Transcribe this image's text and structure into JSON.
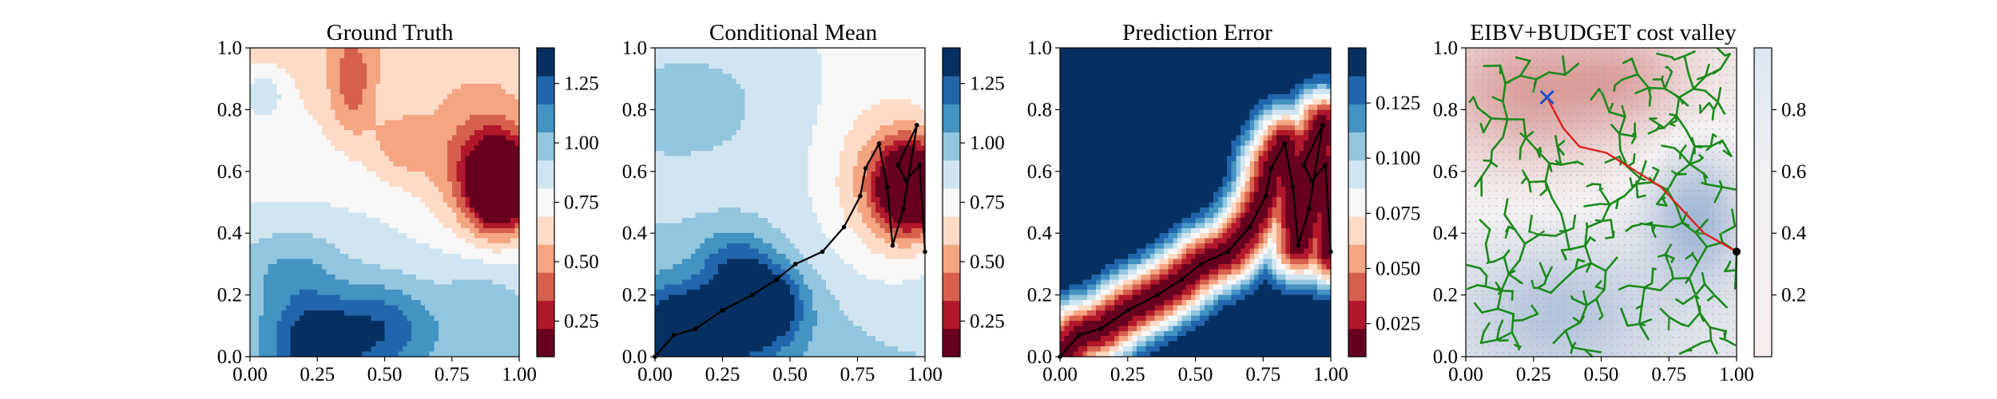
{
  "figure": {
    "panel_titles": [
      "Ground Truth",
      "Conditional Mean",
      "Prediction Error",
      "EIBV+BUDGET cost valley"
    ]
  },
  "colors": {
    "rdbu_levels": [
      "#67001f",
      "#b2182b",
      "#d6604d",
      "#f4a582",
      "#fddbc7",
      "#f7f7f7",
      "#d1e5f0",
      "#92c5de",
      "#4393c3",
      "#2166ac",
      "#053061"
    ],
    "path": "#000000",
    "tree_edges": "#1a8a1a",
    "best_route": "#e0201c",
    "current_marker": "#2050c8",
    "sample_points": "#8898c0"
  },
  "chart_data": [
    {
      "type": "heatmap",
      "title": "Ground Truth",
      "xlim": [
        0,
        1
      ],
      "ylim": [
        0,
        1
      ],
      "xticks": [
        "0.00",
        "0.25",
        "0.50",
        "0.75",
        "1.00"
      ],
      "yticks": [
        "0.0",
        "0.2",
        "0.4",
        "0.6",
        "0.8",
        "1.0"
      ],
      "colorbar": {
        "range": [
          0.1,
          1.4
        ],
        "ticks": [
          "0.25",
          "0.50",
          "0.75",
          "1.00",
          "1.25"
        ]
      },
      "description_of_field": {
        "low_blob": {
          "x": 0.92,
          "y": 0.55,
          "value": 0.1
        },
        "high_region": {
          "x": 0.25,
          "y": 0.05,
          "value": 1.4
        }
      }
    },
    {
      "type": "heatmap",
      "title": "Conditional Mean",
      "xlim": [
        0,
        1
      ],
      "ylim": [
        0,
        1
      ],
      "xticks": [
        "0.00",
        "0.25",
        "0.50",
        "0.75",
        "1.00"
      ],
      "yticks": [
        "0.0",
        "0.2",
        "0.4",
        "0.6",
        "0.8",
        "1.0"
      ],
      "colorbar": {
        "range": [
          0.1,
          1.4
        ],
        "ticks": [
          "0.25",
          "0.50",
          "0.75",
          "1.00",
          "1.25"
        ]
      },
      "path": [
        [
          0.0,
          0.0
        ],
        [
          0.07,
          0.07
        ],
        [
          0.15,
          0.09
        ],
        [
          0.25,
          0.15
        ],
        [
          0.36,
          0.2
        ],
        [
          0.45,
          0.25
        ],
        [
          0.52,
          0.3
        ],
        [
          0.62,
          0.34
        ],
        [
          0.7,
          0.42
        ],
        [
          0.76,
          0.52
        ],
        [
          0.78,
          0.61
        ],
        [
          0.83,
          0.69
        ],
        [
          0.86,
          0.55
        ],
        [
          0.88,
          0.36
        ],
        [
          0.92,
          0.48
        ],
        [
          0.97,
          0.75
        ],
        [
          0.9,
          0.62
        ],
        [
          0.93,
          0.57
        ],
        [
          0.98,
          0.62
        ],
        [
          1.0,
          0.34
        ]
      ]
    },
    {
      "type": "heatmap",
      "title": "Prediction Error",
      "xlim": [
        0,
        1
      ],
      "ylim": [
        0,
        1
      ],
      "xticks": [
        "0.00",
        "0.25",
        "0.50",
        "0.75",
        "1.00"
      ],
      "yticks": [
        "0.0",
        "0.2",
        "0.4",
        "0.6",
        "0.8",
        "1.0"
      ],
      "colorbar": {
        "range": [
          0.01,
          0.15
        ],
        "ticks": [
          "0.025",
          "0.050",
          "0.075",
          "0.100",
          "0.125"
        ]
      },
      "path": [
        [
          0.0,
          0.0
        ],
        [
          0.07,
          0.07
        ],
        [
          0.15,
          0.09
        ],
        [
          0.25,
          0.15
        ],
        [
          0.36,
          0.2
        ],
        [
          0.45,
          0.25
        ],
        [
          0.52,
          0.3
        ],
        [
          0.62,
          0.34
        ],
        [
          0.7,
          0.42
        ],
        [
          0.76,
          0.52
        ],
        [
          0.78,
          0.61
        ],
        [
          0.83,
          0.69
        ],
        [
          0.86,
          0.55
        ],
        [
          0.88,
          0.36
        ],
        [
          0.92,
          0.48
        ],
        [
          0.97,
          0.75
        ],
        [
          0.9,
          0.62
        ],
        [
          0.93,
          0.57
        ],
        [
          0.98,
          0.62
        ],
        [
          1.0,
          0.34
        ]
      ]
    },
    {
      "type": "heatmap",
      "title": "EIBV+BUDGET cost valley",
      "xlim": [
        0,
        1
      ],
      "ylim": [
        0,
        1
      ],
      "xticks": [
        "0.00",
        "0.25",
        "0.50",
        "0.75",
        "1.00"
      ],
      "yticks": [
        "0.0",
        "0.2",
        "0.4",
        "0.6",
        "0.8",
        "1.0"
      ],
      "colorbar": {
        "range": [
          0,
          1
        ],
        "ticks": [
          "0.2",
          "0.4",
          "0.6",
          "0.8"
        ]
      },
      "current_location": [
        1.0,
        0.34
      ],
      "target_location": [
        0.3,
        0.84
      ],
      "best_route": [
        [
          1.0,
          0.34
        ],
        [
          0.88,
          0.4
        ],
        [
          0.72,
          0.55
        ],
        [
          0.52,
          0.66
        ],
        [
          0.42,
          0.68
        ],
        [
          0.36,
          0.74
        ],
        [
          0.3,
          0.84
        ]
      ]
    }
  ]
}
